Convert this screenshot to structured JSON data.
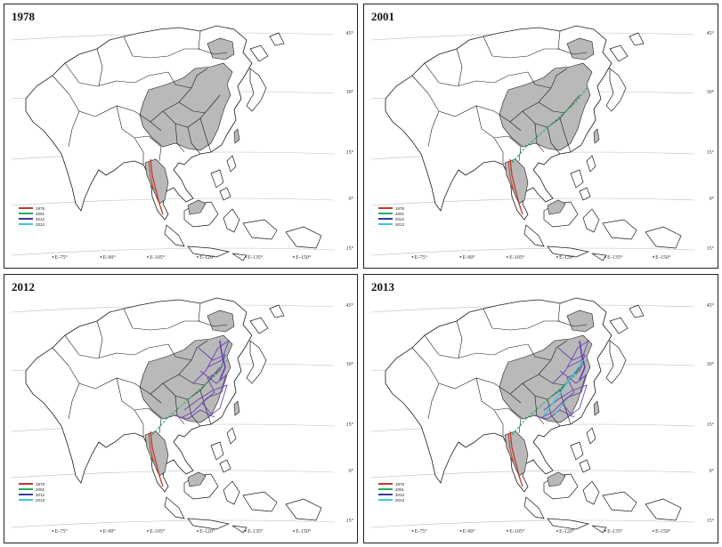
{
  "panels": [
    {
      "title": "1978",
      "legend": [
        {
          "label": "1978",
          "color": "#c0392b"
        },
        {
          "label": "2001",
          "color": "#27ae60"
        },
        {
          "label": "2012",
          "color": "#3b3b9a"
        },
        {
          "label": "2013",
          "color": "#3fc7d8"
        }
      ],
      "routes": [
        "1978"
      ]
    },
    {
      "title": "2001",
      "legend": [
        {
          "label": "1978",
          "color": "#c0392b"
        },
        {
          "label": "2001",
          "color": "#27ae60"
        },
        {
          "label": "2012",
          "color": "#3b3b9a"
        },
        {
          "label": "2013",
          "color": "#3fc7d8"
        }
      ],
      "routes": [
        "1978",
        "2001"
      ]
    },
    {
      "title": "2012",
      "legend": [
        {
          "label": "1978",
          "color": "#c0392b"
        },
        {
          "label": "2001",
          "color": "#27ae60"
        },
        {
          "label": "2012",
          "color": "#3b3b9a"
        },
        {
          "label": "2013",
          "color": "#3fc7d8"
        }
      ],
      "routes": [
        "1978",
        "2001",
        "2012"
      ]
    },
    {
      "title": "2013",
      "legend": [
        {
          "label": "1978",
          "color": "#c0392b"
        },
        {
          "label": "2001",
          "color": "#27ae60"
        },
        {
          "label": "2012",
          "color": "#3b3b9a"
        },
        {
          "label": "2013",
          "color": "#3fc7d8"
        }
      ],
      "routes": [
        "1978",
        "2001",
        "2012",
        "2013"
      ]
    }
  ],
  "lat_labels": [
    "45°",
    "30°",
    "15°",
    "0°",
    "15°"
  ],
  "lon_labels": [
    "E-75°",
    "E-90°",
    "E-105°",
    "E-120°",
    "E-135°",
    "E-150°"
  ],
  "colors": {
    "shade": "#b9b9b9",
    "outline": "#1a1a1a",
    "grid": "#bdbdbd"
  }
}
